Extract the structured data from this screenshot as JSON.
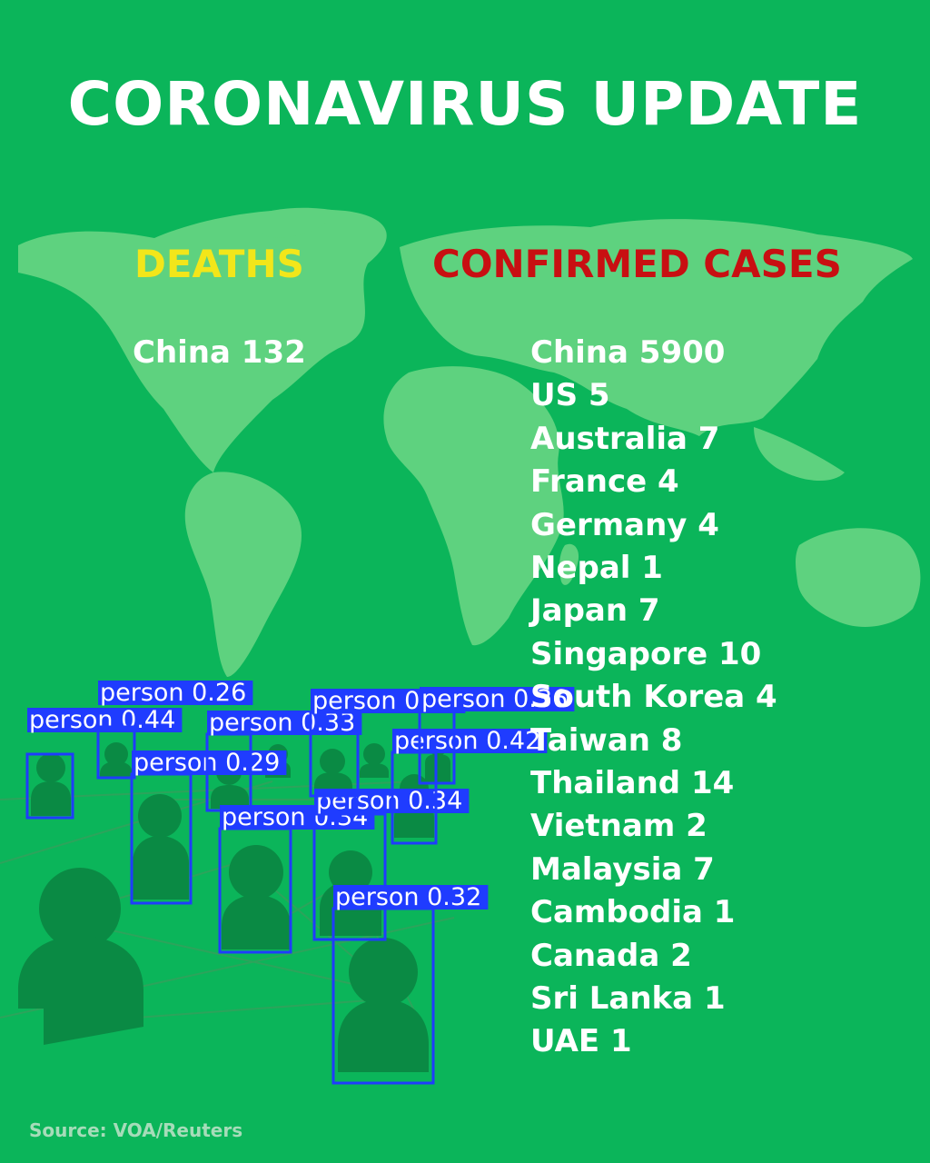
{
  "title": "CORONAVIRUS UPDATE",
  "deaths": {
    "heading": "DEATHS",
    "rows": [
      "China 132"
    ]
  },
  "confirmed": {
    "heading": "CONFIRMED CASES",
    "rows": [
      "China 5900",
      "US 5",
      "Australia 7",
      "France 4",
      "Germany 4",
      "Nepal 1",
      "Japan 7",
      "Singapore 10",
      "South Korea 4",
      "Taiwan 8",
      "Thailand 14",
      "Vietnam 2",
      "Malaysia 7",
      "Cambodia 1",
      "Canada 2",
      "Sri Lanka 1",
      "UAE 1"
    ]
  },
  "source": "Source: VOA/Reuters",
  "detections": [
    {
      "label": "person",
      "score": "0.44"
    },
    {
      "label": "person",
      "score": "0.26"
    },
    {
      "label": "person",
      "score": "0.29"
    },
    {
      "label": "person",
      "score": "0.33"
    },
    {
      "label": "person",
      "score": "0.34"
    },
    {
      "label": "person",
      "score": "0.34"
    },
    {
      "label": "person",
      "score": "0.32"
    },
    {
      "label": "person",
      "score": "0.42"
    },
    {
      "label": "person",
      "score": "0.36"
    },
    {
      "label": "person",
      "score": "0.36"
    }
  ],
  "colors": {
    "background": "#0bb55a",
    "map": "#5ed27f",
    "figures": "#0a8a44",
    "deaths_heading": "#f2e61a",
    "cases_heading": "#c80f12",
    "box": "#1f3cff"
  }
}
